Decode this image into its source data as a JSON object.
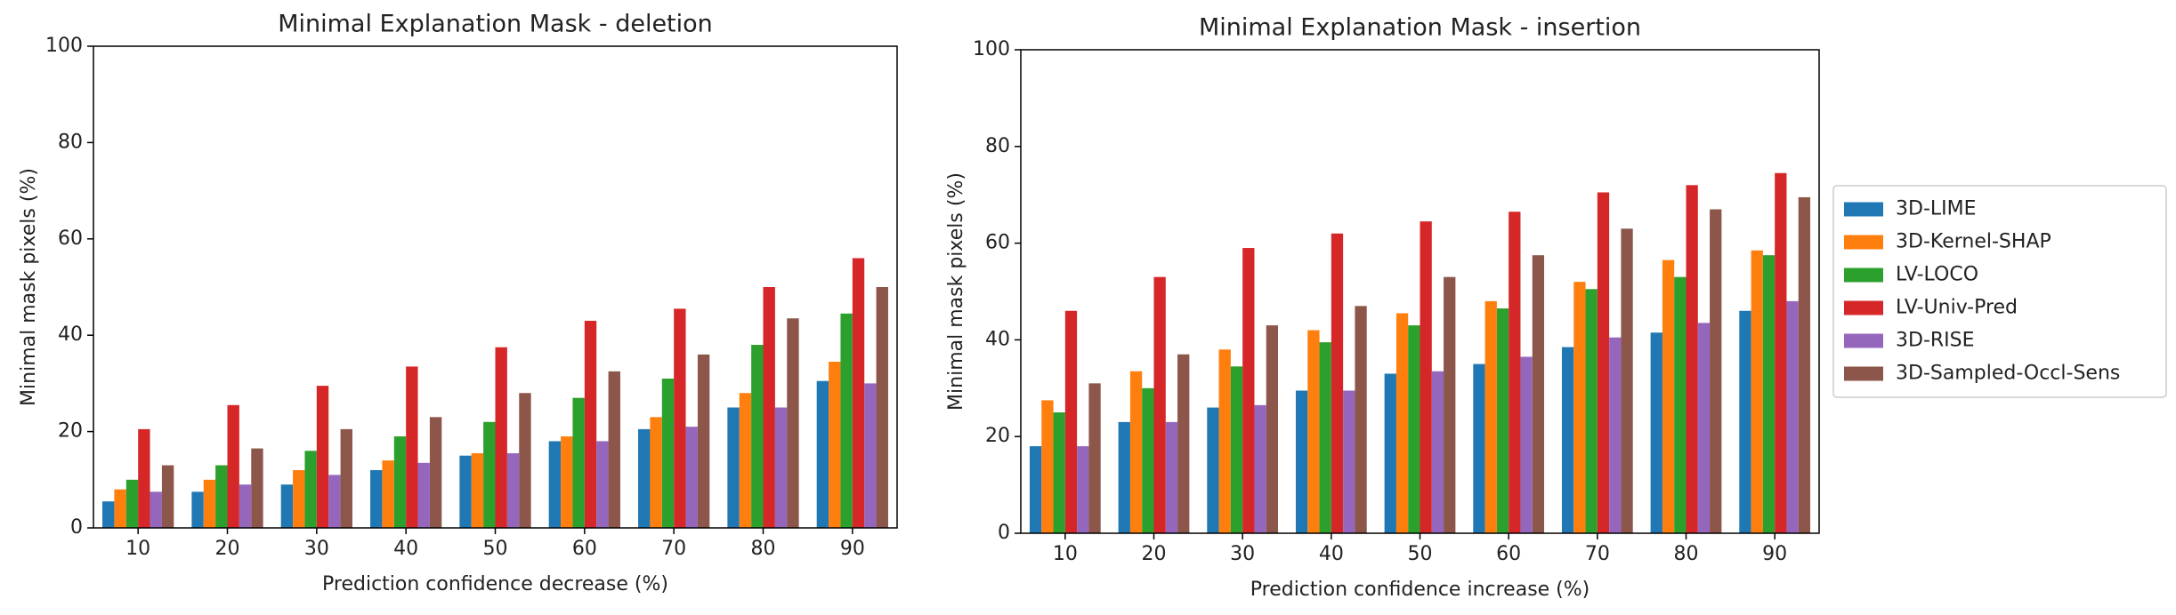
{
  "chart_data": [
    {
      "type": "bar",
      "title": "Minimal Explanation Mask - deletion",
      "x_label": "Prediction confidence decrease (%)",
      "y_label": "Minimal mask pixels (%)",
      "categories": [
        10,
        20,
        30,
        40,
        50,
        60,
        70,
        80,
        90
      ],
      "series": [
        {
          "color": "#1f77b4",
          "values": [
            5.5,
            7.5,
            9,
            12,
            15,
            18,
            20.5,
            25,
            30.5
          ]
        },
        {
          "color": "#ff7f0e",
          "values": [
            8,
            10,
            12,
            14,
            15.5,
            19,
            23,
            28,
            34.5
          ]
        },
        {
          "color": "#2ca02c",
          "values": [
            10,
            13,
            16,
            19,
            22,
            27,
            31,
            38,
            44.5
          ]
        },
        {
          "color": "#d62728",
          "values": [
            20.5,
            25.5,
            29.5,
            33.5,
            37.5,
            43,
            45.5,
            50,
            56
          ]
        },
        {
          "color": "#9467bd",
          "values": [
            7.5,
            9,
            11,
            13.5,
            15.5,
            18,
            21,
            25,
            30
          ]
        },
        {
          "color": "#8c564b",
          "values": [
            13,
            16.5,
            20.5,
            23,
            28,
            32.5,
            36,
            43.5,
            50
          ]
        }
      ],
      "ylim": [
        0,
        100
      ],
      "yticks": [
        0,
        20,
        40,
        60,
        80,
        100
      ]
    },
    {
      "type": "bar",
      "title": "Minimal Explanation Mask - insertion",
      "x_label": "Prediction confidence increase (%)",
      "y_label": "Minimal mask pixels (%)",
      "categories": [
        10,
        20,
        30,
        40,
        50,
        60,
        70,
        80,
        90
      ],
      "series": [
        {
          "name": "3D-LIME",
          "color": "#1f77b4",
          "values": [
            18,
            23,
            26,
            29.5,
            33,
            35,
            38.5,
            41.5,
            46
          ]
        },
        {
          "name": "3D-Kernel-SHAP",
          "color": "#ff7f0e",
          "values": [
            27.5,
            33.5,
            38,
            42,
            45.5,
            48,
            52,
            56.5,
            58.5
          ]
        },
        {
          "name": "LV-LOCO",
          "color": "#2ca02c",
          "values": [
            25,
            30,
            34.5,
            39.5,
            43,
            46.5,
            50.5,
            53,
            57.5
          ]
        },
        {
          "name": "LV-Univ-Pred",
          "color": "#d62728",
          "values": [
            46,
            53,
            59,
            62,
            64.5,
            66.5,
            70.5,
            72,
            74.5
          ]
        },
        {
          "name": "3D-RISE",
          "color": "#9467bd",
          "values": [
            18,
            23,
            26.5,
            29.5,
            33.5,
            36.5,
            40.5,
            43.5,
            48
          ]
        },
        {
          "name": "3D-Sampled-Occl-Sens",
          "color": "#8c564b",
          "values": [
            31,
            37,
            43,
            47,
            53,
            57.5,
            63,
            67,
            69.5
          ]
        }
      ],
      "ylim": [
        0,
        100
      ],
      "yticks": [
        0,
        20,
        40,
        60,
        80,
        100
      ],
      "legend": "right"
    }
  ]
}
